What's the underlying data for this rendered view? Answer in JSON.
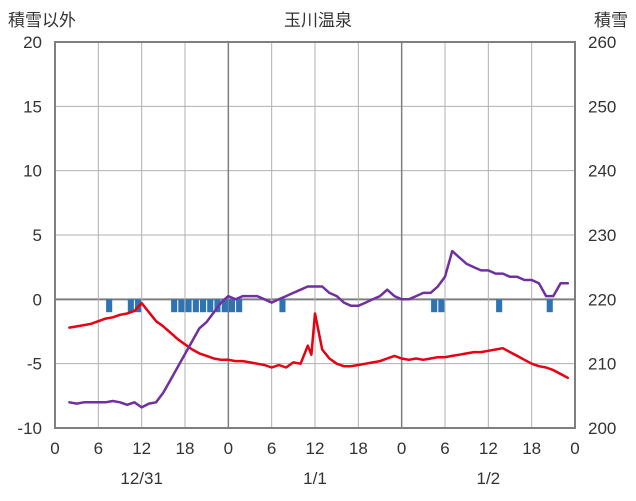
{
  "header": {
    "left_axis_title": "積雪以外",
    "title": "玉川温泉",
    "right_axis_title": "積雪"
  },
  "chart_data": {
    "type": "line",
    "title": "玉川温泉",
    "x_axis": {
      "range_hours": [
        0,
        72
      ],
      "tick_step_hours": 6,
      "tick_labels": [
        "0",
        "6",
        "12",
        "18",
        "0",
        "6",
        "12",
        "18",
        "0",
        "6",
        "12",
        "18",
        "0"
      ],
      "day_labels": [
        {
          "text": "12/31",
          "hour": 12
        },
        {
          "text": "1/1",
          "hour": 36
        },
        {
          "text": "1/2",
          "hour": 60
        }
      ],
      "day_boundary_hours": [
        24,
        48
      ]
    },
    "left_axis": {
      "title": "積雪以外",
      "min": -10,
      "max": 20,
      "ticks": [
        20,
        15,
        10,
        5,
        0,
        -5,
        -10
      ]
    },
    "right_axis": {
      "title": "積雪",
      "min": 200,
      "max": 260,
      "ticks": [
        260,
        250,
        240,
        230,
        220,
        210,
        200
      ]
    },
    "grid": {
      "color": "#b0b0b0",
      "frame_color": "#7f7f7f",
      "zero_line_color": "#7f7f7f"
    },
    "series": [
      {
        "name": "red-line",
        "kind": "line",
        "axis": "left",
        "color": "#e60012",
        "points": [
          [
            2,
            -2.2
          ],
          [
            3,
            -2.1
          ],
          [
            4,
            -2.0
          ],
          [
            5,
            -1.9
          ],
          [
            6,
            -1.7
          ],
          [
            7,
            -1.5
          ],
          [
            8,
            -1.4
          ],
          [
            9,
            -1.2
          ],
          [
            10,
            -1.1
          ],
          [
            11,
            -0.9
          ],
          [
            12,
            -0.3
          ],
          [
            13,
            -1.0
          ],
          [
            14,
            -1.7
          ],
          [
            15,
            -2.1
          ],
          [
            16,
            -2.6
          ],
          [
            17,
            -3.1
          ],
          [
            18,
            -3.5
          ],
          [
            19,
            -3.9
          ],
          [
            20,
            -4.2
          ],
          [
            21,
            -4.4
          ],
          [
            22,
            -4.6
          ],
          [
            23,
            -4.7
          ],
          [
            24,
            -4.7
          ],
          [
            25,
            -4.8
          ],
          [
            26,
            -4.8
          ],
          [
            27,
            -4.9
          ],
          [
            28,
            -5.0
          ],
          [
            29,
            -5.1
          ],
          [
            30,
            -5.3
          ],
          [
            31,
            -5.1
          ],
          [
            32,
            -5.3
          ],
          [
            33,
            -4.9
          ],
          [
            34,
            -5.0
          ],
          [
            35,
            -3.6
          ],
          [
            35.5,
            -4.3
          ],
          [
            36,
            -1.1
          ],
          [
            37,
            -3.9
          ],
          [
            38,
            -4.6
          ],
          [
            39,
            -5.0
          ],
          [
            40,
            -5.2
          ],
          [
            41,
            -5.2
          ],
          [
            42,
            -5.1
          ],
          [
            43,
            -5.0
          ],
          [
            44,
            -4.9
          ],
          [
            45,
            -4.8
          ],
          [
            46,
            -4.6
          ],
          [
            47,
            -4.4
          ],
          [
            48,
            -4.6
          ],
          [
            49,
            -4.7
          ],
          [
            50,
            -4.6
          ],
          [
            51,
            -4.7
          ],
          [
            52,
            -4.6
          ],
          [
            53,
            -4.5
          ],
          [
            54,
            -4.5
          ],
          [
            55,
            -4.4
          ],
          [
            56,
            -4.3
          ],
          [
            57,
            -4.2
          ],
          [
            58,
            -4.1
          ],
          [
            59,
            -4.1
          ],
          [
            60,
            -4.0
          ],
          [
            61,
            -3.9
          ],
          [
            62,
            -3.8
          ],
          [
            63,
            -4.1
          ],
          [
            64,
            -4.4
          ],
          [
            65,
            -4.7
          ],
          [
            66,
            -5.0
          ],
          [
            67,
            -5.2
          ],
          [
            68,
            -5.3
          ],
          [
            69,
            -5.5
          ],
          [
            70,
            -5.8
          ],
          [
            71,
            -6.1
          ]
        ]
      },
      {
        "name": "purple-line",
        "kind": "line",
        "axis": "right",
        "color": "#7030a0",
        "points": [
          [
            2,
            204
          ],
          [
            3,
            203.8
          ],
          [
            4,
            204
          ],
          [
            5,
            204
          ],
          [
            6,
            204
          ],
          [
            7,
            204
          ],
          [
            8,
            204.2
          ],
          [
            9,
            204
          ],
          [
            10,
            203.6
          ],
          [
            11,
            204
          ],
          [
            12,
            203.2
          ],
          [
            13,
            203.8
          ],
          [
            14,
            204
          ],
          [
            15,
            205.5
          ],
          [
            16,
            207.5
          ],
          [
            17,
            209.5
          ],
          [
            18,
            211.5
          ],
          [
            19,
            213.5
          ],
          [
            20,
            215.5
          ],
          [
            21,
            216.5
          ],
          [
            22,
            218
          ],
          [
            23,
            219.5
          ],
          [
            24,
            220.5
          ],
          [
            25,
            220
          ],
          [
            26,
            220.5
          ],
          [
            27,
            220.5
          ],
          [
            28,
            220.5
          ],
          [
            29,
            220
          ],
          [
            30,
            219.5
          ],
          [
            31,
            220
          ],
          [
            32,
            220.5
          ],
          [
            33,
            221
          ],
          [
            34,
            221.5
          ],
          [
            35,
            222
          ],
          [
            36,
            222
          ],
          [
            37,
            222
          ],
          [
            38,
            221
          ],
          [
            39,
            220.5
          ],
          [
            40,
            219.5
          ],
          [
            41,
            219
          ],
          [
            42,
            219
          ],
          [
            43,
            219.5
          ],
          [
            44,
            220
          ],
          [
            45,
            220.5
          ],
          [
            46,
            221.5
          ],
          [
            47,
            220.5
          ],
          [
            48,
            220
          ],
          [
            49,
            220
          ],
          [
            50,
            220.5
          ],
          [
            51,
            221
          ],
          [
            52,
            221
          ],
          [
            53,
            222
          ],
          [
            54,
            223.5
          ],
          [
            55,
            227.5
          ],
          [
            56,
            226.5
          ],
          [
            57,
            225.5
          ],
          [
            58,
            225
          ],
          [
            59,
            224.5
          ],
          [
            60,
            224.5
          ],
          [
            61,
            224
          ],
          [
            62,
            224
          ],
          [
            63,
            223.5
          ],
          [
            64,
            223.5
          ],
          [
            65,
            223
          ],
          [
            66,
            223
          ],
          [
            67,
            222.5
          ],
          [
            68,
            220.5
          ],
          [
            69,
            220.5
          ],
          [
            70,
            222.5
          ],
          [
            71,
            222.5
          ]
        ]
      },
      {
        "name": "blue-bars",
        "kind": "bar",
        "axis": "left",
        "color": "#2e74b5",
        "bar_value": -1,
        "bar_hours": [
          7,
          10,
          11,
          16,
          17,
          18,
          19,
          20,
          21,
          22,
          23,
          24,
          25,
          31,
          52,
          53,
          61,
          68
        ]
      }
    ]
  }
}
